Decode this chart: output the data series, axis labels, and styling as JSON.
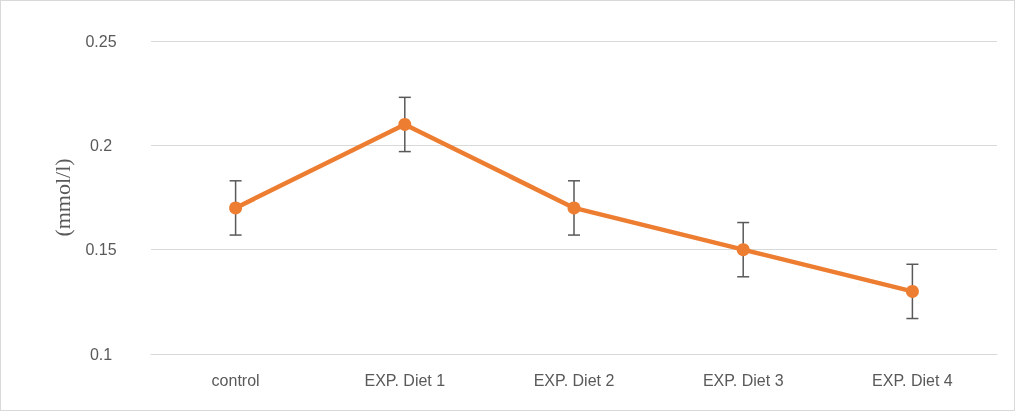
{
  "chart_data": {
    "type": "line",
    "ylabel": "(mmol/l)",
    "categories": [
      "control",
      "EXP. Diet 1",
      "EXP. Diet 2",
      "EXP. Diet 3",
      "EXP. Diet 4"
    ],
    "series": [
      {
        "color": "#ed7d31",
        "values": [
          0.17,
          0.21,
          0.17,
          0.15,
          0.13
        ],
        "errors": [
          0.013,
          0.013,
          0.013,
          0.013,
          0.013
        ]
      }
    ],
    "ylim": [
      0.1,
      0.25
    ],
    "yticks": [
      0.1,
      0.15,
      0.2,
      0.25
    ],
    "grid": "y",
    "marker": "circle",
    "line_style": "solid"
  }
}
